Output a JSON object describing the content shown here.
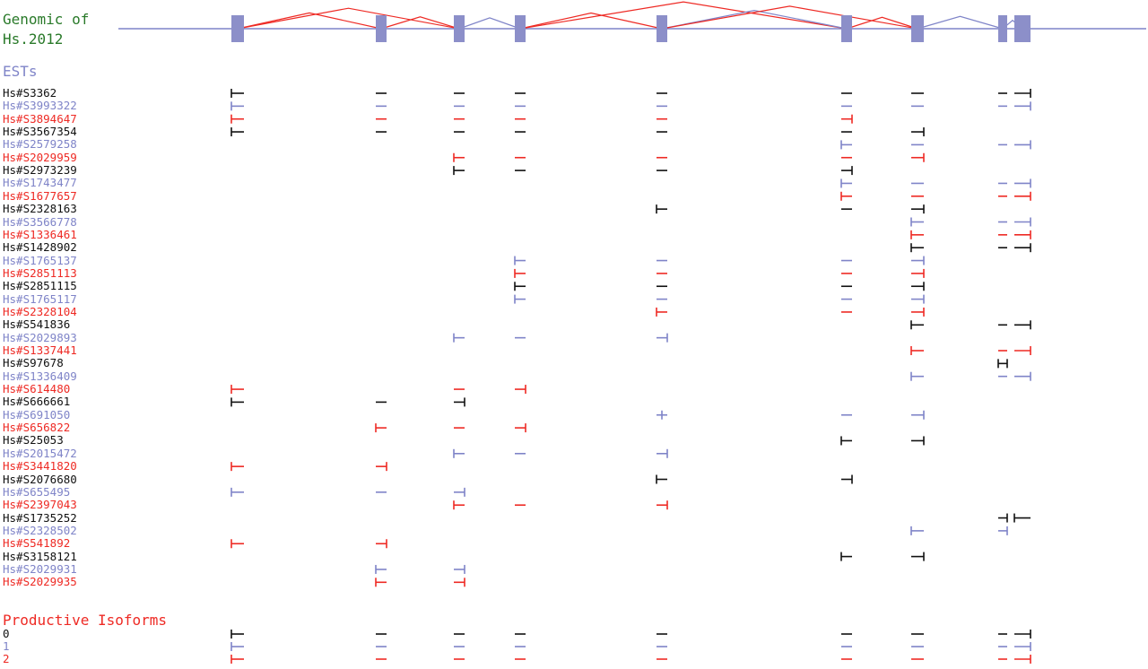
{
  "title": {
    "line1": "Genomic of",
    "line2": "Hs.2012"
  },
  "ests_heading": "ESTs",
  "isoforms_heading": "Productive Isoforms",
  "colors": {
    "black": "#111111",
    "blue": "#7f84c8",
    "red": "#ee2a24",
    "green": "#2a7a2a",
    "exon": "#8c8fc9"
  },
  "exons": [
    1,
    2,
    3,
    4,
    5,
    6,
    7,
    8,
    9
  ],
  "splice_links": [
    {
      "from": 1,
      "to": 3,
      "color": "red"
    },
    {
      "from": 1,
      "to": 2,
      "color": "red"
    },
    {
      "from": 2,
      "to": 3,
      "color": "red"
    },
    {
      "from": 3,
      "to": 4,
      "color": "blue"
    },
    {
      "from": 4,
      "to": 5,
      "color": "red"
    },
    {
      "from": 4,
      "to": 6,
      "color": "red"
    },
    {
      "from": 5,
      "to": 6,
      "color": "blue"
    },
    {
      "from": 5,
      "to": 7,
      "color": "red"
    },
    {
      "from": 6,
      "to": 7,
      "color": "red"
    },
    {
      "from": 7,
      "to": 8,
      "color": "blue"
    },
    {
      "from": 8,
      "to": 9,
      "color": "blue"
    }
  ],
  "ests": [
    {
      "name": "Hs#S3362",
      "color": "black",
      "marks": [
        [
          1,
          "L"
        ],
        [
          2,
          "D"
        ],
        [
          3,
          "D"
        ],
        [
          4,
          "D"
        ],
        [
          5,
          "D"
        ],
        [
          6,
          "D"
        ],
        [
          7,
          "D"
        ],
        [
          8,
          "D"
        ],
        [
          9,
          "R"
        ]
      ]
    },
    {
      "name": "Hs#S3993322",
      "color": "blue",
      "marks": [
        [
          1,
          "L"
        ],
        [
          2,
          "D"
        ],
        [
          3,
          "D"
        ],
        [
          4,
          "D"
        ],
        [
          5,
          "D"
        ],
        [
          6,
          "D"
        ],
        [
          7,
          "D"
        ],
        [
          8,
          "D"
        ],
        [
          9,
          "R"
        ]
      ]
    },
    {
      "name": "Hs#S3894647",
      "color": "red",
      "marks": [
        [
          1,
          "L"
        ],
        [
          2,
          "D"
        ],
        [
          3,
          "D"
        ],
        [
          4,
          "D"
        ],
        [
          5,
          "D"
        ],
        [
          6,
          "R"
        ]
      ]
    },
    {
      "name": "Hs#S3567354",
      "color": "black",
      "marks": [
        [
          1,
          "L"
        ],
        [
          2,
          "D"
        ],
        [
          3,
          "D"
        ],
        [
          4,
          "D"
        ],
        [
          5,
          "D"
        ],
        [
          6,
          "D"
        ],
        [
          7,
          "R"
        ]
      ]
    },
    {
      "name": "Hs#S2579258",
      "color": "blue",
      "marks": [
        [
          6,
          "L"
        ],
        [
          7,
          "D"
        ],
        [
          8,
          "D"
        ],
        [
          9,
          "R"
        ]
      ]
    },
    {
      "name": "Hs#S2029959",
      "color": "red",
      "marks": [
        [
          3,
          "L"
        ],
        [
          4,
          "D"
        ],
        [
          5,
          "D"
        ],
        [
          6,
          "D"
        ],
        [
          7,
          "R"
        ]
      ]
    },
    {
      "name": "Hs#S2973239",
      "color": "black",
      "marks": [
        [
          3,
          "L"
        ],
        [
          4,
          "D"
        ],
        [
          5,
          "D"
        ],
        [
          6,
          "R"
        ]
      ]
    },
    {
      "name": "Hs#S1743477",
      "color": "blue",
      "marks": [
        [
          6,
          "L"
        ],
        [
          7,
          "D"
        ],
        [
          8,
          "D"
        ],
        [
          9,
          "R"
        ]
      ]
    },
    {
      "name": "Hs#S1677657",
      "color": "red",
      "marks": [
        [
          6,
          "L"
        ],
        [
          7,
          "D"
        ],
        [
          8,
          "D"
        ],
        [
          9,
          "R"
        ]
      ]
    },
    {
      "name": "Hs#S2328163",
      "color": "black",
      "marks": [
        [
          5,
          "L"
        ],
        [
          6,
          "D"
        ],
        [
          7,
          "R"
        ]
      ]
    },
    {
      "name": "Hs#S3566778",
      "color": "blue",
      "marks": [
        [
          7,
          "L"
        ],
        [
          8,
          "D"
        ],
        [
          9,
          "R"
        ]
      ]
    },
    {
      "name": "Hs#S1336461",
      "color": "red",
      "marks": [
        [
          7,
          "L"
        ],
        [
          8,
          "D"
        ],
        [
          9,
          "R"
        ]
      ]
    },
    {
      "name": "Hs#S1428902",
      "color": "black",
      "marks": [
        [
          7,
          "L"
        ],
        [
          8,
          "D"
        ],
        [
          9,
          "R"
        ]
      ]
    },
    {
      "name": "Hs#S1765137",
      "color": "blue",
      "marks": [
        [
          4,
          "L"
        ],
        [
          5,
          "D"
        ],
        [
          6,
          "D"
        ],
        [
          7,
          "R"
        ]
      ]
    },
    {
      "name": "Hs#S2851113",
      "color": "red",
      "marks": [
        [
          4,
          "L"
        ],
        [
          5,
          "D"
        ],
        [
          6,
          "D"
        ],
        [
          7,
          "R"
        ]
      ]
    },
    {
      "name": "Hs#S2851115",
      "color": "black",
      "marks": [
        [
          4,
          "L"
        ],
        [
          5,
          "D"
        ],
        [
          6,
          "D"
        ],
        [
          7,
          "R"
        ]
      ]
    },
    {
      "name": "Hs#S1765117",
      "color": "blue",
      "marks": [
        [
          4,
          "L"
        ],
        [
          5,
          "D"
        ],
        [
          6,
          "D"
        ],
        [
          7,
          "R"
        ]
      ]
    },
    {
      "name": "Hs#S2328104",
      "color": "red",
      "marks": [
        [
          5,
          "L"
        ],
        [
          6,
          "D"
        ],
        [
          7,
          "R"
        ]
      ]
    },
    {
      "name": "Hs#S541836",
      "color": "black",
      "marks": [
        [
          7,
          "L"
        ],
        [
          8,
          "D"
        ],
        [
          9,
          "R"
        ]
      ]
    },
    {
      "name": "Hs#S2029893",
      "color": "blue",
      "marks": [
        [
          3,
          "L"
        ],
        [
          4,
          "D"
        ],
        [
          5,
          "R"
        ]
      ]
    },
    {
      "name": "Hs#S1337441",
      "color": "red",
      "marks": [
        [
          7,
          "L"
        ],
        [
          8,
          "D"
        ],
        [
          9,
          "R"
        ]
      ]
    },
    {
      "name": "Hs#S97678",
      "color": "black",
      "marks": [
        [
          8,
          "B"
        ]
      ]
    },
    {
      "name": "Hs#S1336409",
      "color": "blue",
      "marks": [
        [
          7,
          "L"
        ],
        [
          8,
          "D"
        ],
        [
          9,
          "R"
        ]
      ]
    },
    {
      "name": "Hs#S614480",
      "color": "red",
      "marks": [
        [
          1,
          "L"
        ],
        [
          3,
          "D"
        ],
        [
          4,
          "R"
        ]
      ]
    },
    {
      "name": "Hs#S666661",
      "color": "black",
      "marks": [
        [
          1,
          "L"
        ],
        [
          2,
          "D"
        ],
        [
          3,
          "R"
        ]
      ]
    },
    {
      "name": "Hs#S691050",
      "color": "blue",
      "marks": [
        [
          5,
          "T"
        ],
        [
          6,
          "D"
        ],
        [
          7,
          "R"
        ]
      ]
    },
    {
      "name": "Hs#S656822",
      "color": "red",
      "marks": [
        [
          2,
          "L"
        ],
        [
          3,
          "D"
        ],
        [
          4,
          "R"
        ]
      ]
    },
    {
      "name": "Hs#S25053",
      "color": "black",
      "marks": [
        [
          6,
          "L"
        ],
        [
          7,
          "R"
        ]
      ]
    },
    {
      "name": "Hs#S2015472",
      "color": "blue",
      "marks": [
        [
          3,
          "L"
        ],
        [
          4,
          "D"
        ],
        [
          5,
          "R"
        ]
      ]
    },
    {
      "name": "Hs#S3441820",
      "color": "red",
      "marks": [
        [
          1,
          "L"
        ],
        [
          2,
          "R"
        ]
      ]
    },
    {
      "name": "Hs#S2076680",
      "color": "black",
      "marks": [
        [
          5,
          "L"
        ],
        [
          6,
          "R"
        ]
      ]
    },
    {
      "name": "Hs#S655495",
      "color": "blue",
      "marks": [
        [
          1,
          "L"
        ],
        [
          2,
          "D"
        ],
        [
          3,
          "R"
        ]
      ]
    },
    {
      "name": "Hs#S2397043",
      "color": "red",
      "marks": [
        [
          3,
          "L"
        ],
        [
          4,
          "D"
        ],
        [
          5,
          "R"
        ]
      ]
    },
    {
      "name": "Hs#S1735252",
      "color": "black",
      "marks": [
        [
          8,
          "R"
        ],
        [
          9,
          "L"
        ]
      ]
    },
    {
      "name": "Hs#S2328502",
      "color": "blue",
      "marks": [
        [
          7,
          "L"
        ],
        [
          8,
          "R"
        ]
      ]
    },
    {
      "name": "Hs#S541892",
      "color": "red",
      "marks": [
        [
          1,
          "L"
        ],
        [
          2,
          "R"
        ]
      ]
    },
    {
      "name": "Hs#S3158121",
      "color": "black",
      "marks": [
        [
          6,
          "L"
        ],
        [
          7,
          "R"
        ]
      ]
    },
    {
      "name": "Hs#S2029931",
      "color": "blue",
      "marks": [
        [
          2,
          "L"
        ],
        [
          3,
          "R"
        ]
      ]
    },
    {
      "name": "Hs#S2029935",
      "color": "red",
      "marks": [
        [
          2,
          "L"
        ],
        [
          3,
          "R"
        ]
      ]
    }
  ],
  "isoforms": [
    {
      "name": "0",
      "color": "black",
      "marks": [
        [
          1,
          "L"
        ],
        [
          2,
          "D"
        ],
        [
          3,
          "D"
        ],
        [
          4,
          "D"
        ],
        [
          5,
          "D"
        ],
        [
          6,
          "D"
        ],
        [
          7,
          "D"
        ],
        [
          8,
          "D"
        ],
        [
          9,
          "R"
        ]
      ]
    },
    {
      "name": "1",
      "color": "blue",
      "marks": [
        [
          1,
          "L"
        ],
        [
          2,
          "D"
        ],
        [
          3,
          "D"
        ],
        [
          4,
          "D"
        ],
        [
          5,
          "D"
        ],
        [
          6,
          "D"
        ],
        [
          7,
          "D"
        ],
        [
          8,
          "D"
        ],
        [
          9,
          "R"
        ]
      ]
    },
    {
      "name": "2",
      "color": "red",
      "marks": [
        [
          1,
          "L"
        ],
        [
          2,
          "D"
        ],
        [
          3,
          "D"
        ],
        [
          4,
          "D"
        ],
        [
          5,
          "D"
        ],
        [
          6,
          "D"
        ],
        [
          7,
          "D"
        ],
        [
          8,
          "D"
        ],
        [
          9,
          "R"
        ]
      ]
    }
  ]
}
